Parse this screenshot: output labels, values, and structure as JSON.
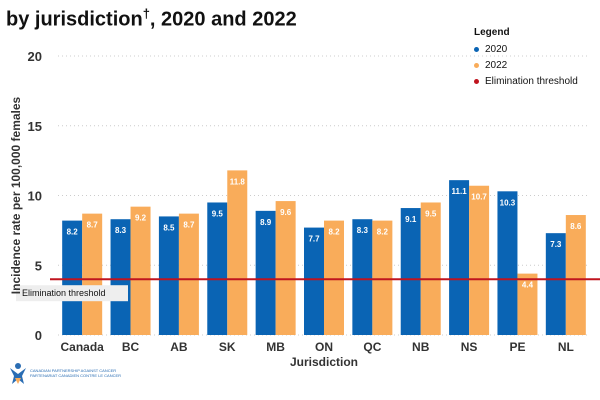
{
  "title": {
    "text": "by jurisdiction",
    "mark": "†",
    "suffix": ", 2020 and 2022"
  },
  "legend": {
    "title": "Legend",
    "items": [
      "2020",
      "2022",
      "Elimination threshold"
    ]
  },
  "logo": {
    "line1": "CANADIAN PARTNERSHIP AGAINST CANCER",
    "line2": "PARTENARIAT CANADIEN CONTRE LE CANCER"
  },
  "chart_data": {
    "type": "bar",
    "xlabel": "Jurisdiction",
    "ylabel": "Incidence rate per 100,000 females",
    "ylim": [
      0,
      20
    ],
    "yticks": [
      0,
      5,
      10,
      15,
      20
    ],
    "categories": [
      "Canada",
      "BC",
      "AB",
      "SK",
      "MB",
      "ON",
      "QC",
      "NB",
      "NS",
      "PE",
      "NL"
    ],
    "series": [
      {
        "name": "2020",
        "color": "#0a64b4",
        "values": [
          8.2,
          8.3,
          8.5,
          9.5,
          8.9,
          7.7,
          8.3,
          9.1,
          11.1,
          10.3,
          7.3
        ]
      },
      {
        "name": "2022",
        "color": "#f9ac5a",
        "values": [
          8.7,
          9.2,
          8.7,
          11.8,
          9.6,
          8.2,
          8.2,
          9.5,
          10.7,
          4.4,
          8.6
        ]
      }
    ],
    "threshold": {
      "name": "Elimination threshold",
      "value": 4,
      "color": "#c0141e"
    },
    "grid": true,
    "legend_position": "top-right"
  }
}
